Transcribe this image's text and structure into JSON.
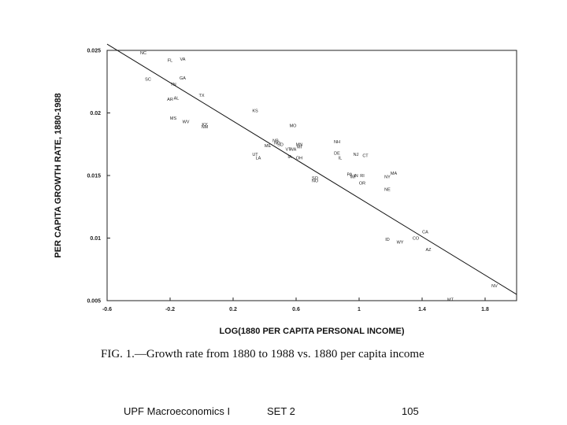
{
  "chart_data": {
    "type": "scatter",
    "xlabel": "LOG(1880 PER CAPITA PERSONAL INCOME)",
    "ylabel": "PER CAPITA GROWTH RATE, 1880-1988",
    "xlim": [
      -0.6,
      2.0
    ],
    "ylim": [
      0.005,
      0.025
    ],
    "x_ticks": [
      "-0.6",
      "-0.2",
      "0.2",
      "0.6",
      "1",
      "1.4",
      "1.8"
    ],
    "y_ticks": [
      "0.005",
      "0.01",
      "0.015",
      "0.02",
      "0.025"
    ],
    "grid": false,
    "fit_line": {
      "x": [
        -0.6,
        2.0
      ],
      "y": [
        0.0255,
        0.0055
      ]
    },
    "points": [
      {
        "label": "NC",
        "x": -0.37,
        "y": 0.0248
      },
      {
        "label": "FL",
        "x": -0.2,
        "y": 0.0242
      },
      {
        "label": "VA",
        "x": -0.12,
        "y": 0.0243
      },
      {
        "label": "SC",
        "x": -0.34,
        "y": 0.0227
      },
      {
        "label": "GA",
        "x": -0.12,
        "y": 0.0228
      },
      {
        "label": "TN",
        "x": -0.18,
        "y": 0.0223
      },
      {
        "label": "TX",
        "x": 0.0,
        "y": 0.0214
      },
      {
        "label": "AL",
        "x": -0.16,
        "y": 0.0212
      },
      {
        "label": "AR",
        "x": -0.2,
        "y": 0.0211
      },
      {
        "label": "KS",
        "x": 0.34,
        "y": 0.0202
      },
      {
        "label": "MS",
        "x": -0.18,
        "y": 0.0196
      },
      {
        "label": "WV",
        "x": -0.1,
        "y": 0.0193
      },
      {
        "label": "KY",
        "x": 0.02,
        "y": 0.0191
      },
      {
        "label": "NM",
        "x": 0.02,
        "y": 0.0189
      },
      {
        "label": "MO",
        "x": 0.58,
        "y": 0.019
      },
      {
        "label": "NH",
        "x": 0.86,
        "y": 0.0177
      },
      {
        "label": "NB",
        "x": 0.47,
        "y": 0.0178
      },
      {
        "label": "ND",
        "x": 0.48,
        "y": 0.0176
      },
      {
        "label": "SD",
        "x": 0.5,
        "y": 0.0175
      },
      {
        "label": "ME",
        "x": 0.42,
        "y": 0.0174
      },
      {
        "label": "MN",
        "x": 0.62,
        "y": 0.0175
      },
      {
        "label": "MI",
        "x": 0.62,
        "y": 0.0173
      },
      {
        "label": "VT",
        "x": 0.55,
        "y": 0.0171
      },
      {
        "label": "WA",
        "x": 0.58,
        "y": 0.0171
      },
      {
        "label": "DE",
        "x": 0.86,
        "y": 0.0168
      },
      {
        "label": "NJ",
        "x": 0.98,
        "y": 0.0167
      },
      {
        "label": "CT",
        "x": 1.04,
        "y": 0.0166
      },
      {
        "label": "UT",
        "x": 0.34,
        "y": 0.0167
      },
      {
        "label": "LA",
        "x": 0.36,
        "y": 0.0164
      },
      {
        "label": "IA",
        "x": 0.56,
        "y": 0.0165
      },
      {
        "label": "OH",
        "x": 0.62,
        "y": 0.0164
      },
      {
        "label": "IL",
        "x": 0.88,
        "y": 0.0164
      },
      {
        "label": "MA",
        "x": 1.22,
        "y": 0.0152
      },
      {
        "label": "PA",
        "x": 0.94,
        "y": 0.0151
      },
      {
        "label": "IN",
        "x": 0.98,
        "y": 0.015
      },
      {
        "label": "NY",
        "x": 1.18,
        "y": 0.0149
      },
      {
        "label": "RI",
        "x": 1.02,
        "y": 0.015
      },
      {
        "label": "WI",
        "x": 0.96,
        "y": 0.0149
      },
      {
        "label": "SO",
        "x": 0.72,
        "y": 0.0148
      },
      {
        "label": "NO",
        "x": 0.72,
        "y": 0.0146
      },
      {
        "label": "OR",
        "x": 1.02,
        "y": 0.0144
      },
      {
        "label": "NE",
        "x": 1.18,
        "y": 0.0139
      },
      {
        "label": "CA",
        "x": 1.42,
        "y": 0.0105
      },
      {
        "label": "CO",
        "x": 1.36,
        "y": 0.01
      },
      {
        "label": "ID",
        "x": 1.18,
        "y": 0.0099
      },
      {
        "label": "WY",
        "x": 1.26,
        "y": 0.0097
      },
      {
        "label": "AZ",
        "x": 1.44,
        "y": 0.0091
      },
      {
        "label": "NV",
        "x": 1.86,
        "y": 0.0062
      },
      {
        "label": "MT",
        "x": 1.58,
        "y": 0.0051
      }
    ]
  },
  "caption": "FIG. 1.—Growth rate from 1880 to 1988 vs. 1880 per capita income",
  "footer": {
    "left": "UPF Macroeconomics I",
    "middle": "SET 2",
    "right": "105"
  }
}
